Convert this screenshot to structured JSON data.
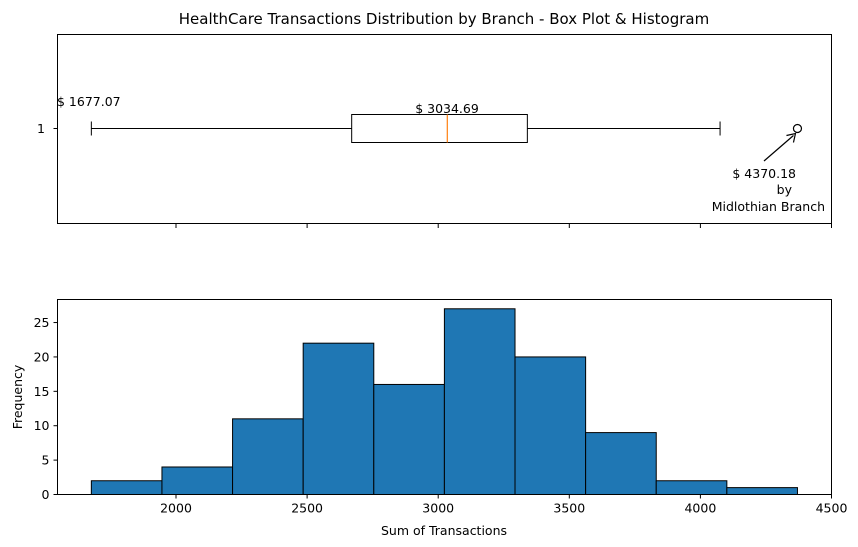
{
  "figure": {
    "title": "HealthCare Transactions Distribution by Branch - Box Plot & Histogram"
  },
  "chart_data": [
    {
      "type": "box",
      "category_tick": "1",
      "x_range": [
        1548,
        4500
      ],
      "whisker_low": 1677.07,
      "q1": 2670,
      "median": 3034.69,
      "q3": 3340,
      "whisker_high": 4075,
      "outliers": [
        4370.18
      ],
      "annotations": {
        "min_label": "$ 1677.07",
        "median_label": "$ 3034.69",
        "outlier_value": "$ 4370.18",
        "outlier_by": "by",
        "outlier_branch": "Midlothian Branch"
      },
      "colors": {
        "box": "#000000",
        "median": "#ff7f0e"
      }
    },
    {
      "type": "histogram",
      "xlabel": "Sum of Transactions",
      "ylabel": "Frequency",
      "xlim": [
        1548,
        4500
      ],
      "ylim": [
        0,
        28.35
      ],
      "bin_edges": [
        1677.07,
        1946.38,
        2215.69,
        2485.0,
        2754.31,
        3023.62,
        3292.94,
        3562.25,
        3831.56,
        4100.87,
        4370.18
      ],
      "counts": [
        2,
        4,
        11,
        22,
        16,
        27,
        20,
        9,
        2,
        1
      ],
      "x_ticks": [
        2000,
        2500,
        3000,
        3500,
        4000,
        4500
      ],
      "y_ticks": [
        0,
        5,
        10,
        15,
        20,
        25
      ],
      "bar_color": "#1f77b4",
      "edge_color": "#000000"
    }
  ]
}
